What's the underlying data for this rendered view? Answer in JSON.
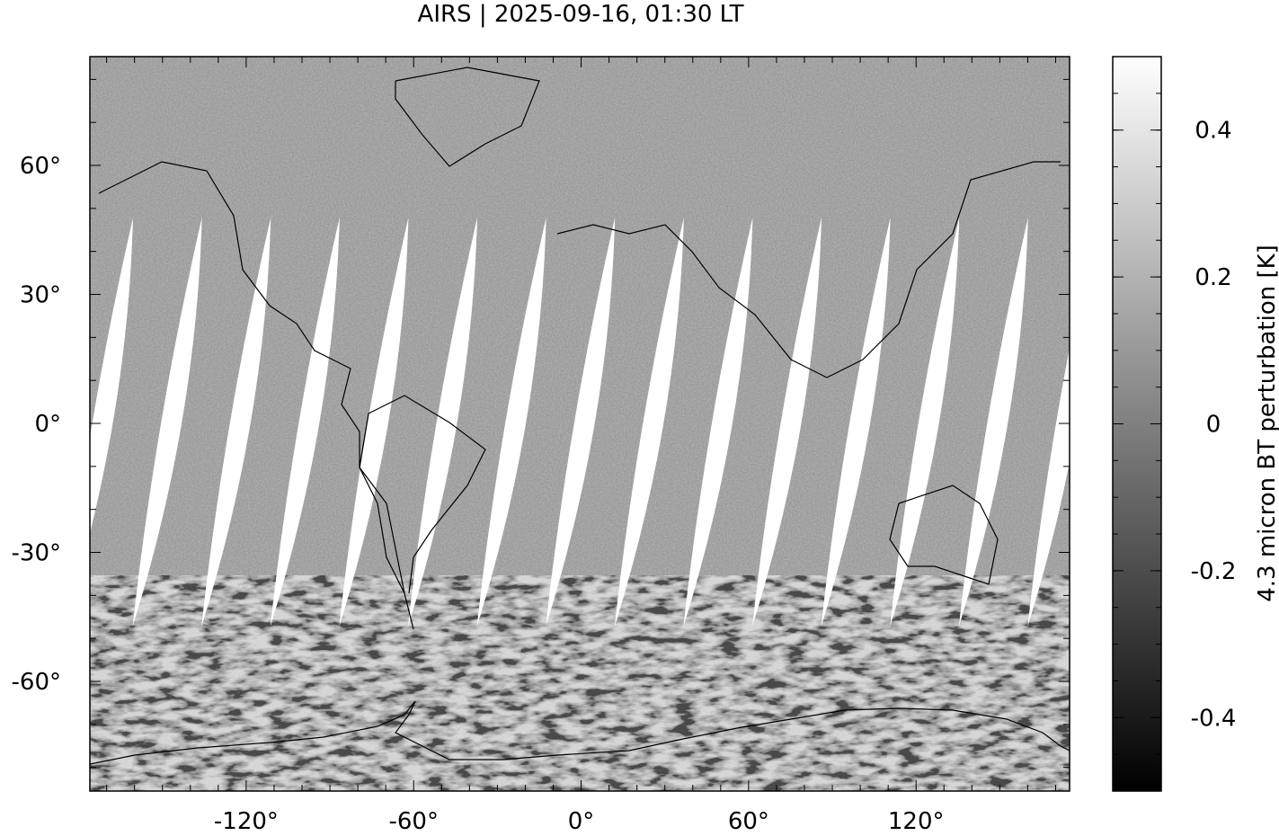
{
  "chart_data": {
    "type": "heatmap",
    "title": "AIRS | 2025-09-16, 01:30 LT",
    "xlim": [
      -176,
      175
    ],
    "ylim": [
      -85.5,
      85.3
    ],
    "x_ticks": [
      -120,
      -60,
      0,
      60,
      120
    ],
    "x_tick_labels": [
      "-120°",
      "-60°",
      "0°",
      "60°",
      "120°"
    ],
    "y_ticks": [
      60,
      30,
      0,
      -30,
      -60
    ],
    "y_tick_labels": [
      "60°",
      "30°",
      "0°",
      "-30°",
      "-60°"
    ],
    "minor_tick_step_deg": 10,
    "colorbar": {
      "label": "4.3 micron BT perturbation [K]",
      "range": [
        -0.5,
        0.5
      ],
      "ticks": [
        0.4,
        0.2,
        0,
        -0.2,
        -0.4
      ],
      "tick_labels": [
        "0.4",
        "0.2",
        "0",
        "-0.2",
        "-0.4"
      ],
      "colormap": "gray",
      "low_color": "#000000",
      "high_color": "#ffffff"
    },
    "missing_data_color": "#ffffff",
    "coastlines": true,
    "grid": false
  }
}
